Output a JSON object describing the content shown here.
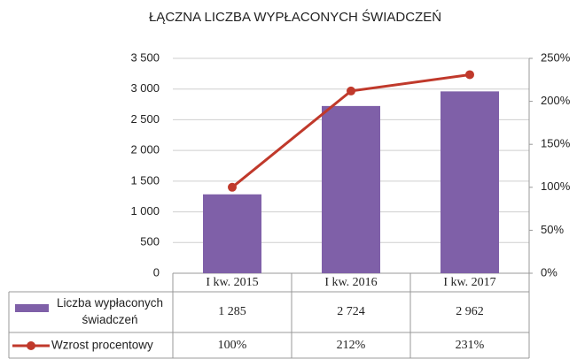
{
  "chart_data": {
    "type": "bar_line_table",
    "title": "ŁĄCZNA LICZBA WYPŁACONYCH ŚWIADCZEŃ",
    "categories": [
      "I kw. 2015",
      "I kw. 2016",
      "I kw. 2017"
    ],
    "series": [
      {
        "name": "Liczba wypłaconych świadczeń",
        "type": "bar",
        "color": "#7f60a8",
        "values": [
          1285,
          2724,
          2962
        ],
        "value_labels": [
          "1 285",
          "2 724",
          "2 962"
        ]
      },
      {
        "name": "Wzrost procentowy",
        "type": "line",
        "axis": "y2",
        "color": "#c0392b",
        "values": [
          100,
          212,
          231
        ],
        "value_labels": [
          "100%",
          "212%",
          "231%"
        ]
      }
    ],
    "ylim": [
      0,
      3500
    ],
    "yticks": [
      0,
      500,
      {
        "value": 1000,
        "label": "1 000"
      },
      {
        "value": 1500,
        "label": "1 500"
      },
      {
        "value": 2000,
        "label": "2 000"
      },
      {
        "value": 2500,
        "label": "2 500"
      },
      {
        "value": 3000,
        "label": "3 000"
      },
      {
        "value": 3500,
        "label": "3 500"
      }
    ],
    "y2lim": [
      0,
      250
    ],
    "y2ticks": [
      {
        "value": 0,
        "label": "0%"
      },
      {
        "value": 50,
        "label": "50%"
      },
      {
        "value": 100,
        "label": "100%"
      },
      {
        "value": 150,
        "label": "150%"
      },
      {
        "value": 200,
        "label": "200%"
      },
      {
        "value": 250,
        "label": "250%"
      }
    ],
    "grid": true
  }
}
